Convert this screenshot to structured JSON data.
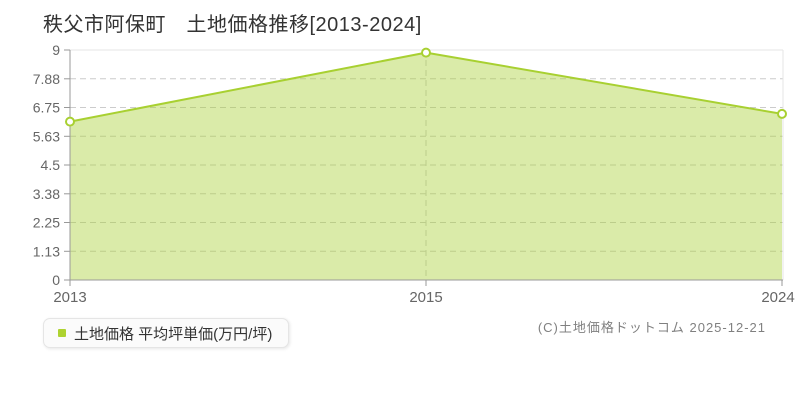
{
  "page": {
    "title": "秩父市阿保町　土地価格推移[2013-2024]"
  },
  "chart_data": {
    "type": "area",
    "title": "秩父市阿保町　土地価格推移[2013-2024]",
    "categories": [
      "2013",
      "2015",
      "2024"
    ],
    "series": [
      {
        "name": "土地価格 平均坪単価(万円/坪)",
        "values": [
          6.2,
          8.9,
          6.5
        ]
      }
    ],
    "xlabel": "",
    "ylabel": "",
    "ylim": [
      0,
      9
    ],
    "yticks": [
      0,
      1.125,
      2.25,
      3.375,
      4.5,
      5.625,
      6.75,
      7.875,
      9
    ],
    "ytick_labels": [
      "0",
      "1.13",
      "2.25",
      "3.38",
      "4.5",
      "5.63",
      "6.75",
      "7.88",
      "9"
    ],
    "unit": "万円/坪",
    "grid": "dashed horizontal lines; dashed vertical line at middle category",
    "legend_position": "bottom-left",
    "marker": "circle, white fill, green stroke"
  },
  "legend": {
    "label": "土地価格 平均坪単価(万円/坪)"
  },
  "footer": {
    "copyright": "(C)土地価格ドットコム 2025-12-21"
  },
  "colors": {
    "series": "#a8d031",
    "area_fill_opacity": 0.42,
    "legend_marker": "#aed331",
    "grid_dashed": "#cccccc",
    "axis_line": "#999999",
    "plot_border": "#e5e5e5",
    "title_text": "#333333",
    "axis_text": "#666666",
    "copyright_text": "#808080"
  }
}
